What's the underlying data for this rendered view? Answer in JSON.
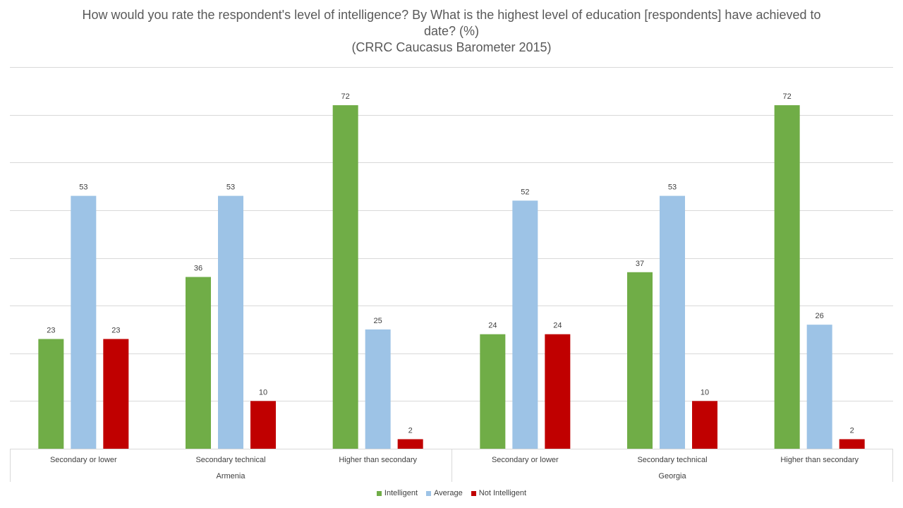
{
  "title": {
    "line1": "How would you rate the respondent's level of intelligence? By What is the highest level of education [respondents] have achieved to",
    "line2": "date? (%)",
    "line3": "(CRRC Caucasus Barometer 2015)"
  },
  "chart_data": {
    "type": "bar",
    "title": "How would you rate the respondent's level of intelligence? By What is the highest level of education [respondents] have achieved to date? (%) (CRRC Caucasus Barometer 2015)",
    "ylim": [
      0,
      80
    ],
    "grid": true,
    "legend_position": "bottom",
    "groups": [
      {
        "name": "Armenia",
        "categories": [
          "Secondary or lower",
          "Secondary technical",
          "Higher than secondary"
        ]
      },
      {
        "name": "Georgia",
        "categories": [
          "Secondary or lower",
          "Secondary technical",
          "Higher than secondary"
        ]
      }
    ],
    "series": [
      {
        "name": "Intelligent",
        "color": "#70ad47",
        "values": [
          23,
          36,
          72,
          24,
          37,
          72
        ]
      },
      {
        "name": "Average",
        "color": "#9dc3e6",
        "values": [
          53,
          53,
          25,
          52,
          53,
          26
        ]
      },
      {
        "name": "Not Intelligent",
        "color": "#c00000",
        "values": [
          23,
          10,
          2,
          24,
          10,
          2
        ]
      }
    ]
  }
}
